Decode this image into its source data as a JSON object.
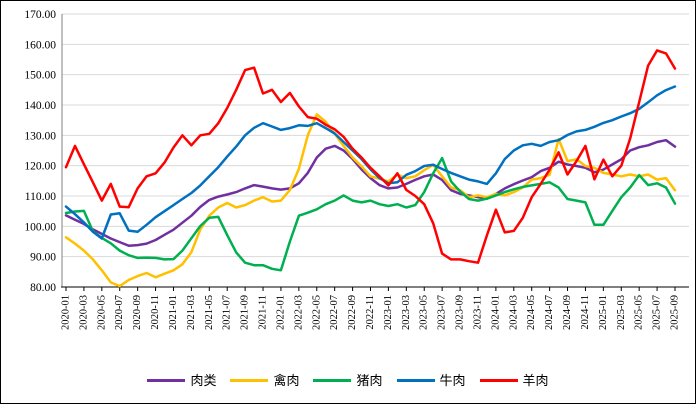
{
  "chart_data": {
    "type": "line",
    "title": "",
    "xlabel": "",
    "ylabel": "",
    "ylim": [
      80,
      170
    ],
    "y_tick_labels": [
      "80.00",
      "90.00",
      "100.00",
      "110.00",
      "120.00",
      "130.00",
      "140.00",
      "150.00",
      "160.00",
      "170.00"
    ],
    "grid": "horizontal",
    "legend_position": "bottom",
    "x": [
      "2020-01",
      "2020-02",
      "2020-03",
      "2020-04",
      "2020-05",
      "2020-06",
      "2020-07",
      "2020-08",
      "2020-09",
      "2020-10",
      "2020-11",
      "2020-12",
      "2021-01",
      "2021-02",
      "2021-03",
      "2021-04",
      "2021-05",
      "2021-06",
      "2021-07",
      "2021-08",
      "2021-09",
      "2021-10",
      "2021-11",
      "2021-12",
      "2022-01",
      "2022-02",
      "2022-03",
      "2022-04",
      "2022-05",
      "2022-06",
      "2022-07",
      "2022-08",
      "2022-09",
      "2022-10",
      "2022-11",
      "2022-12",
      "2023-01",
      "2023-02",
      "2023-03",
      "2023-04",
      "2023-05",
      "2023-06",
      "2023-07",
      "2023-08",
      "2023-09",
      "2023-10",
      "2023-11",
      "2023-12",
      "2024-01",
      "2024-02",
      "2024-03",
      "2024-04",
      "2024-05",
      "2024-06",
      "2024-07",
      "2024-08",
      "2024-09",
      "2024-10",
      "2024-11",
      "2024-12",
      "2025-01",
      "2025-02",
      "2025-03",
      "2025-04",
      "2025-05",
      "2025-06",
      "2025-07",
      "2025-08",
      "2025-09"
    ],
    "x_tick_every": 2,
    "series": [
      {
        "name": "肉类",
        "color": "#7030A0",
        "values": [
          103.6,
          102.2,
          100.8,
          99.0,
          97.5,
          96.0,
          94.8,
          93.6,
          93.8,
          94.3,
          95.5,
          97.2,
          98.9,
          101.2,
          103.5,
          106.4,
          108.7,
          109.8,
          110.5,
          111.3,
          112.5,
          113.6,
          113.1,
          112.5,
          112.1,
          112.5,
          114.2,
          117.6,
          122.7,
          125.6,
          126.5,
          125.0,
          122.2,
          118.8,
          115.9,
          113.6,
          112.5,
          112.8,
          114.0,
          115.3,
          116.5,
          117.1,
          115.3,
          111.9,
          110.7,
          110.2,
          109.6,
          109.1,
          110.7,
          112.5,
          113.9,
          115.1,
          116.2,
          118.2,
          119.3,
          121.3,
          120.4,
          119.9,
          119.3,
          117.8,
          118.7,
          120.4,
          122.1,
          125.0,
          126.1,
          126.7,
          127.8,
          128.4,
          126.3
        ]
      },
      {
        "name": "禽肉",
        "color": "#FFC000",
        "values": [
          96.4,
          94.3,
          92.0,
          89.1,
          85.5,
          81.5,
          80.3,
          82.3,
          83.6,
          84.6,
          83.2,
          84.4,
          85.5,
          87.5,
          91.5,
          99.0,
          103.5,
          106.2,
          107.7,
          106.2,
          107.0,
          108.5,
          109.6,
          108.2,
          108.5,
          112.0,
          119.0,
          130.0,
          136.9,
          134.5,
          130.5,
          126.5,
          122.7,
          119.8,
          116.5,
          115.7,
          114.8,
          117.0,
          115.9,
          116.5,
          118.5,
          120.3,
          116.5,
          112.8,
          111.9,
          109.6,
          110.2,
          109.6,
          110.7,
          110.2,
          111.3,
          112.8,
          115.4,
          115.9,
          117.0,
          128.8,
          121.5,
          122.1,
          119.9,
          119.3,
          117.6,
          117.1,
          116.5,
          117.1,
          116.5,
          117.1,
          115.4,
          115.9,
          111.9
        ]
      },
      {
        "name": "猪肉",
        "color": "#00B050",
        "values": [
          104.4,
          104.9,
          105.1,
          98.4,
          96.2,
          94.4,
          92.0,
          90.5,
          89.6,
          89.7,
          89.6,
          89.1,
          89.2,
          92.0,
          96.1,
          100.1,
          102.8,
          103.1,
          97.1,
          91.4,
          88.0,
          87.2,
          87.2,
          86.0,
          85.5,
          95.0,
          103.5,
          104.5,
          105.6,
          107.3,
          108.5,
          110.2,
          108.5,
          107.9,
          108.5,
          107.3,
          106.7,
          107.3,
          106.2,
          107.0,
          111.3,
          117.5,
          122.5,
          114.8,
          111.5,
          109.0,
          108.5,
          109.1,
          110.2,
          111.3,
          112.2,
          113.0,
          113.5,
          114.0,
          114.5,
          112.8,
          109.0,
          108.5,
          107.9,
          100.5,
          100.5,
          105.1,
          109.6,
          112.8,
          116.9,
          113.6,
          114.2,
          112.8,
          107.5
        ]
      },
      {
        "name": "牛肉",
        "color": "#0070C0",
        "values": [
          106.5,
          104.0,
          101.3,
          98.2,
          96.0,
          103.9,
          104.3,
          98.6,
          98.2,
          100.5,
          103.0,
          105.0,
          107.0,
          109.0,
          111.0,
          113.5,
          116.5,
          119.5,
          123.0,
          126.3,
          130.0,
          132.5,
          134.0,
          132.9,
          131.8,
          132.4,
          133.3,
          133.1,
          134.0,
          132.4,
          130.6,
          127.8,
          125.0,
          122.2,
          118.8,
          115.9,
          114.2,
          114.5,
          117.0,
          118.2,
          119.9,
          120.3,
          118.9,
          117.6,
          116.5,
          115.4,
          114.8,
          114.0,
          117.5,
          122.2,
          125.0,
          126.7,
          127.2,
          126.5,
          127.8,
          128.4,
          130.1,
          131.3,
          131.8,
          132.8,
          134.1,
          135.0,
          136.2,
          137.3,
          138.7,
          140.9,
          143.2,
          144.9,
          146.1
        ]
      },
      {
        "name": "羊肉",
        "color": "#FF0000",
        "values": [
          119.5,
          126.5,
          120.5,
          114.5,
          108.5,
          114.0,
          106.5,
          106.3,
          112.5,
          116.5,
          117.5,
          121.0,
          126.0,
          130.0,
          126.7,
          130.0,
          130.5,
          134.0,
          139.0,
          145.0,
          151.5,
          152.3,
          143.8,
          145.0,
          141.0,
          144.0,
          139.5,
          136.0,
          135.5,
          133.5,
          132.0,
          129.5,
          125.6,
          122.7,
          119.3,
          116.5,
          113.5,
          117.5,
          112.0,
          110.0,
          107.3,
          101.0,
          91.0,
          89.1,
          89.1,
          88.5,
          88.0,
          97.0,
          105.5,
          98.0,
          98.5,
          102.8,
          109.6,
          114.0,
          118.7,
          124.4,
          117.1,
          121.5,
          126.5,
          115.5,
          122.0,
          116.5,
          120.0,
          129.0,
          141.0,
          153.0,
          158.0,
          157.0,
          152.0
        ]
      }
    ]
  }
}
